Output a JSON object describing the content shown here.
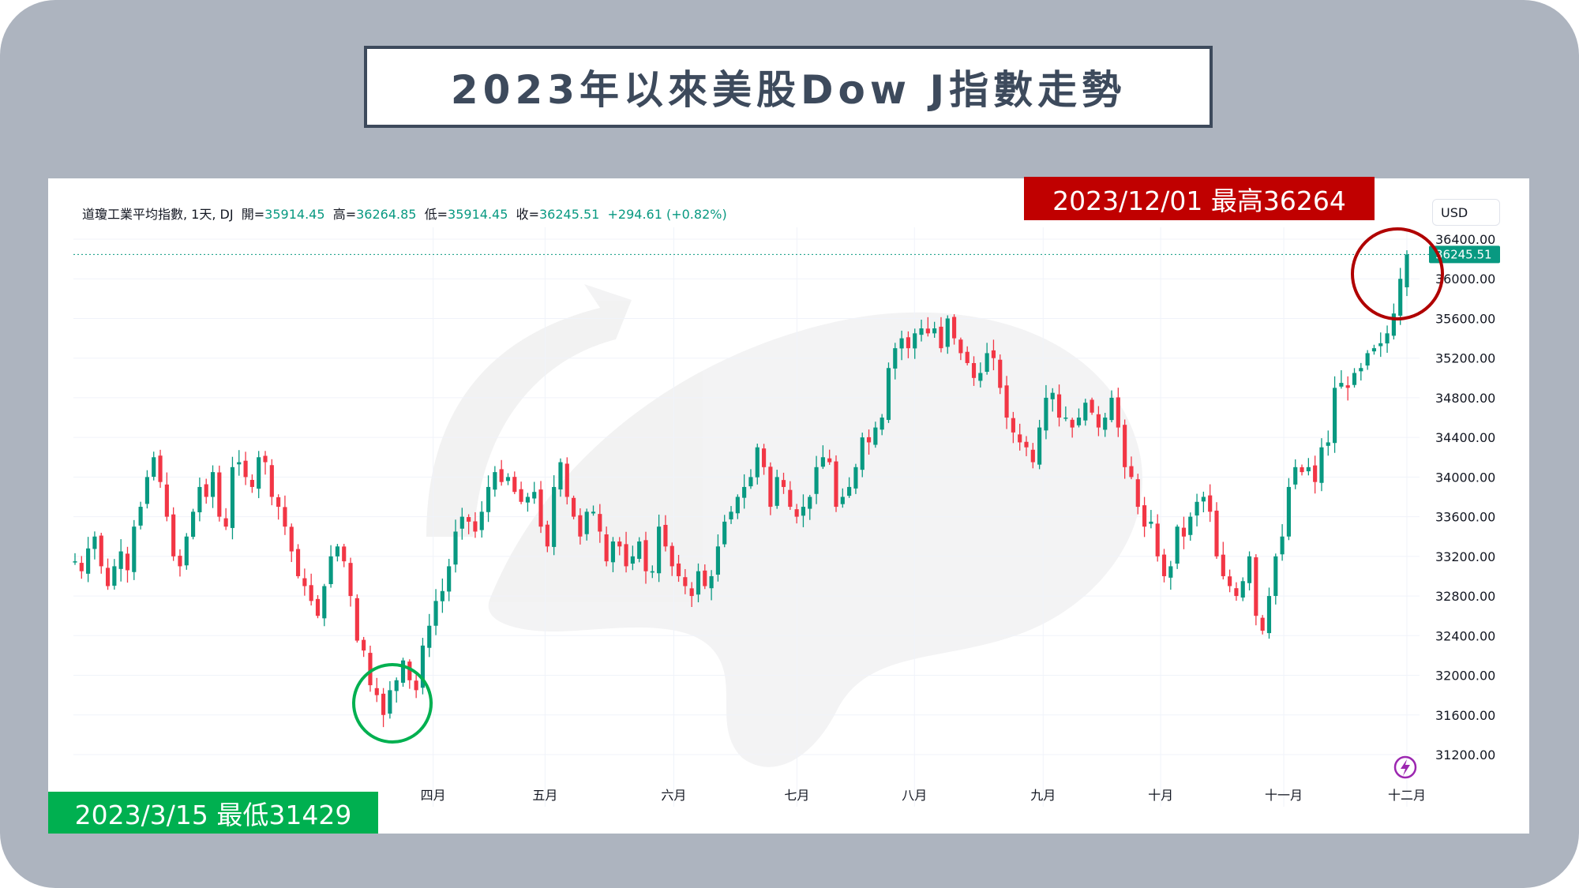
{
  "title": "2023年以來美股Dow J指數走勢",
  "legend": {
    "name": "道瓊工業平均指數, 1天, DJ",
    "open_label": "開=",
    "open": "35914.45",
    "high_label": "高=",
    "high": "36264.85",
    "low_label": "低=",
    "low": "35914.45",
    "close_label": "收=",
    "close": "36245.51",
    "change": "+294.61 (+0.82%)"
  },
  "currency": "USD",
  "annotations": {
    "high": "2023/12/01 最高36264",
    "low": "2023/3/15 最低31429"
  },
  "colors": {
    "up": "#089981",
    "down": "#f23645",
    "high_badge": "#c00000",
    "low_badge": "#00b050",
    "high_circle": "#b00000",
    "low_circle": "#00b050"
  },
  "chart_data": {
    "type": "candlestick",
    "symbol": "DJ",
    "interval": "1天",
    "ylim": [
      31000,
      36700
    ],
    "y_ticks": [
      31200,
      31600,
      32000,
      32400,
      32800,
      33200,
      33600,
      34000,
      34400,
      34800,
      35200,
      35600,
      36000,
      36400
    ],
    "x_ticks": [
      {
        "label": "四月",
        "date": "2023-04-03"
      },
      {
        "label": "五月",
        "date": "2023-05-01"
      },
      {
        "label": "六月",
        "date": "2023-06-01"
      },
      {
        "label": "七月",
        "date": "2023-07-03"
      },
      {
        "label": "八月",
        "date": "2023-08-01"
      },
      {
        "label": "九月",
        "date": "2023-09-01"
      },
      {
        "label": "十月",
        "date": "2023-10-02"
      },
      {
        "label": "十一月",
        "date": "2023-11-01"
      },
      {
        "label": "十二月",
        "date": "2023-12-01"
      }
    ],
    "last_price": "36245.51",
    "last_value": 36245.51,
    "closes": [
      33150,
      33050,
      33280,
      33400,
      33100,
      32900,
      33100,
      33250,
      33060,
      33500,
      33700,
      34000,
      34200,
      33950,
      33600,
      33200,
      33100,
      33400,
      33650,
      33900,
      33800,
      34050,
      33600,
      33500,
      34100,
      34150,
      34000,
      33900,
      34200,
      34150,
      33800,
      33700,
      33500,
      33250,
      33000,
      32900,
      32750,
      32600,
      32900,
      33200,
      33300,
      33150,
      32800,
      32350,
      32250,
      31900,
      31800,
      31600,
      31850,
      31950,
      32150,
      31950,
      31850,
      32300,
      32500,
      32750,
      32850,
      33100,
      33450,
      33600,
      33550,
      33450,
      33650,
      33900,
      34050,
      33950,
      34000,
      33850,
      33750,
      33800,
      33850,
      33500,
      33300,
      33900,
      34150,
      33800,
      33600,
      33400,
      33650,
      33650,
      33450,
      33150,
      33350,
      33300,
      33100,
      33200,
      33350,
      33050,
      33050,
      33500,
      33300,
      33100,
      33000,
      32900,
      32800,
      33050,
      32900,
      33000,
      33300,
      33550,
      33650,
      33800,
      33900,
      34000,
      34300,
      34100,
      33700,
      34000,
      33900,
      33700,
      33600,
      33700,
      33800,
      34100,
      34200,
      34150,
      33700,
      33800,
      33900,
      34100,
      34400,
      34350,
      34500,
      34600,
      35100,
      35300,
      35400,
      35300,
      35450,
      35500,
      35450,
      35500,
      35300,
      35600,
      35400,
      35250,
      35150,
      35000,
      35050,
      35250,
      35200,
      34900,
      34600,
      34450,
      34350,
      34300,
      34150,
      34500,
      34800,
      34850,
      34600,
      34600,
      34500,
      34600,
      34750,
      34650,
      34500,
      34600,
      34800,
      34500,
      34100,
      34000,
      33700,
      33500,
      33550,
      33200,
      33000,
      33100,
      33500,
      33400,
      33600,
      33750,
      33800,
      33650,
      33200,
      33000,
      32900,
      32800,
      32950,
      33200,
      32600,
      32450,
      32800,
      33200,
      33400,
      33900,
      34100,
      34050,
      34100,
      33950,
      34300,
      34350,
      34900,
      34950,
      34900,
      35050,
      35100,
      35250,
      35300,
      35350,
      35450,
      35650,
      36000,
      36245.51
    ]
  }
}
